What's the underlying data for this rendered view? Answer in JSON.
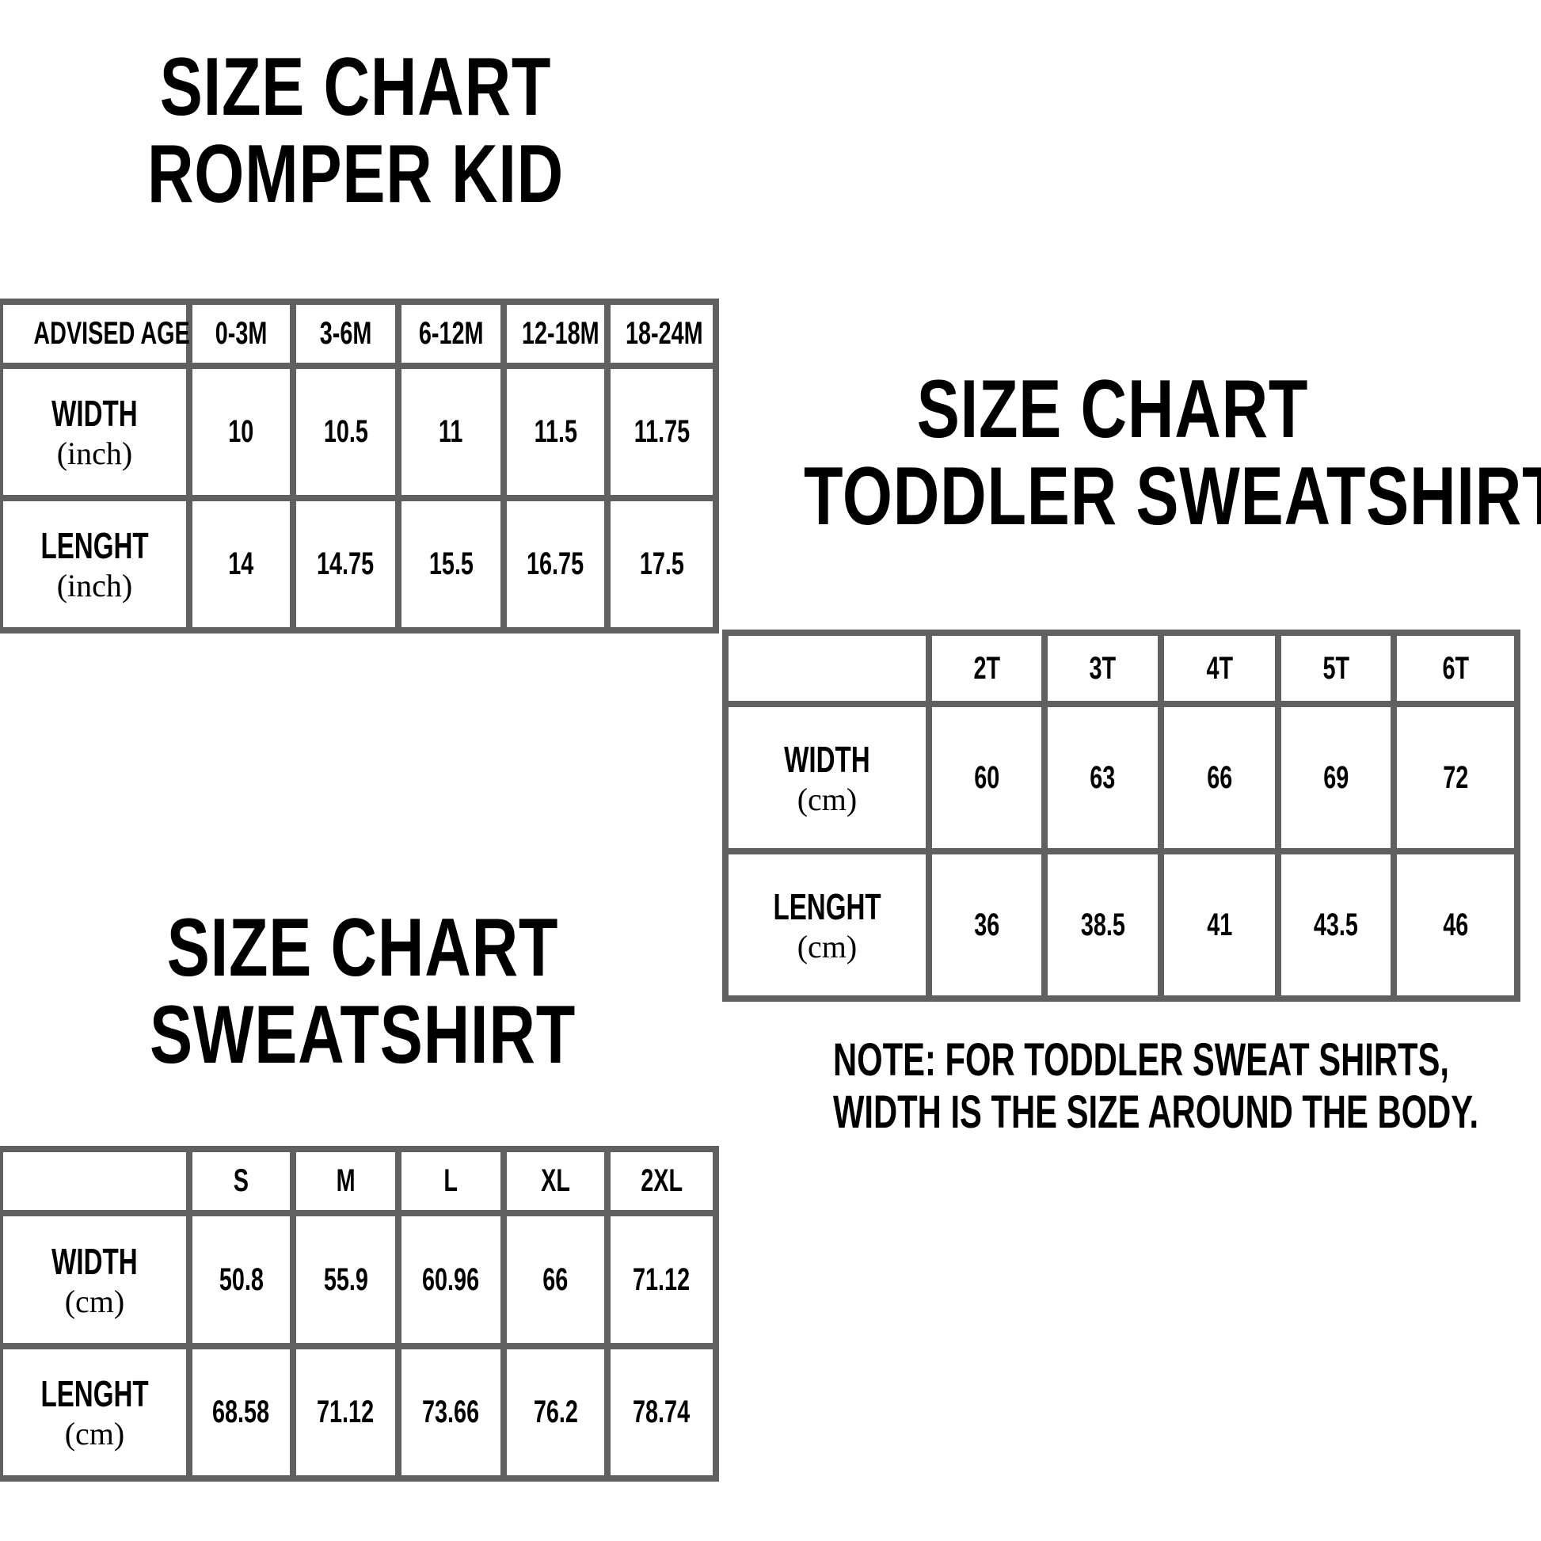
{
  "border_color": "#606060",
  "romper": {
    "title": [
      "SIZE CHART",
      "ROMPER KID"
    ],
    "header": [
      "ADVISED AGE",
      "0-3M",
      "3-6M",
      "6-12M",
      "12-18M",
      "18-24M"
    ],
    "rows": [
      {
        "label": "WIDTH",
        "unit": "(inch)",
        "values": [
          "10",
          "10.5",
          "11",
          "11.5",
          "11.75"
        ]
      },
      {
        "label": "LENGHT",
        "unit": "(inch)",
        "values": [
          "14",
          "14.75",
          "15.5",
          "16.75",
          "17.5"
        ]
      }
    ]
  },
  "toddler": {
    "title": [
      "SIZE CHART",
      "TODDLER SWEATSHIRT"
    ],
    "header": [
      "",
      "2T",
      "3T",
      "4T",
      "5T",
      "6T"
    ],
    "rows": [
      {
        "label": "WIDTH",
        "unit": "(cm)",
        "values": [
          "60",
          "63",
          "66",
          "69",
          "72"
        ]
      },
      {
        "label": "LENGHT",
        "unit": "(cm)",
        "values": [
          "36",
          "38.5",
          "41",
          "43.5",
          "46"
        ]
      }
    ],
    "note": [
      "NOTE: FOR TODDLER SWEAT SHIRTS,",
      "WIDTH IS THE SIZE AROUND THE BODY."
    ]
  },
  "sweatshirt": {
    "title": [
      "SIZE CHART",
      "SWEATSHIRT"
    ],
    "header": [
      "",
      "S",
      "M",
      "L",
      "XL",
      "2XL"
    ],
    "rows": [
      {
        "label": "WIDTH",
        "unit": "(cm)",
        "values": [
          "50.8",
          "55.9",
          "60.96",
          "66",
          "71.12"
        ]
      },
      {
        "label": "LENGHT",
        "unit": "(cm)",
        "values": [
          "68.58",
          "71.12",
          "73.66",
          "76.2",
          "78.74"
        ]
      }
    ]
  }
}
